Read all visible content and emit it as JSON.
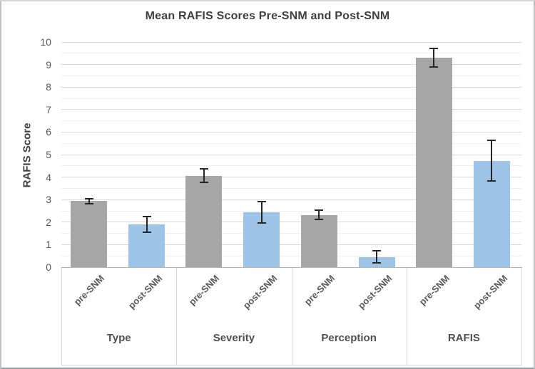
{
  "chart_data": {
    "type": "bar",
    "title": "Mean RAFIS Scores Pre-SNM and Post-SNM",
    "ylabel": "RAFIS Score",
    "ylim": [
      0,
      10
    ],
    "y_major": 1,
    "y_minor": 0.5,
    "y_tick_labels": [
      "0",
      "1",
      "2",
      "3",
      "4",
      "5",
      "6",
      "7",
      "8",
      "9",
      "10"
    ],
    "categories": [
      "Type",
      "Severity",
      "Perception",
      "RAFIS"
    ],
    "series": [
      {
        "name": "pre-SNM",
        "color": "#a6a6a6",
        "values": [
          2.93,
          4.06,
          2.32,
          9.3
        ],
        "errors": [
          0.1,
          0.3,
          0.2,
          0.4
        ]
      },
      {
        "name": "post-SNM",
        "color": "#9dc3e6",
        "values": [
          1.9,
          2.43,
          0.45,
          4.72
        ],
        "errors": [
          0.35,
          0.47,
          0.27,
          0.9
        ]
      }
    ],
    "legend": "none",
    "grid": "horizontal major and minor",
    "colors": {
      "major_grid": "#d9d9d9",
      "minor_grid": "#f1f1f1",
      "axis_line": "#b3b3b3",
      "error_bar": "#262626",
      "title_text": "#3f3f3f",
      "tick_text": "#595959"
    }
  }
}
